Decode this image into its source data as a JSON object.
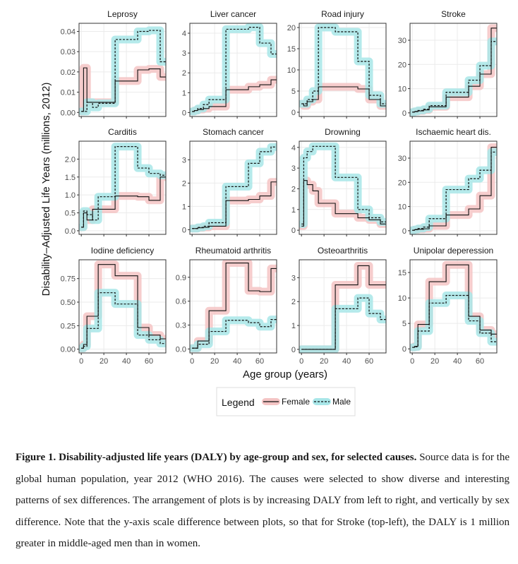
{
  "ylabel": "Disability–Adjusted Life Years (millions, 2012)",
  "xlabel": "Age group (years)",
  "legend": {
    "title": "Legend",
    "female": "Female",
    "male": "Male"
  },
  "colors": {
    "female_band": "#f4c4c4",
    "male_band": "#a8e6e8",
    "line": "#111111",
    "grid": "#ebebeb",
    "border": "#333333"
  },
  "caption": {
    "title": "Figure 1. Disability-adjusted life years (DALY) by age-group and sex, for selected causes.",
    "body": "Source data is for the global human population, year 2012 (WHO 2016). The causes were selected to show diverse and interesting patterns of sex differences. The arrangement of plots is by increasing DALY from left to right, and vertically by sex difference. Note that the y-axis scale difference between plots, so that for Stroke (top-left), the DALY is 1 million greater in middle-aged men than in women."
  },
  "chart_data": {
    "type": "line",
    "step": true,
    "xlabel": "Age group (years)",
    "ylabel": "Disability–Adjusted Life Years (millions, 2012)",
    "xlim": [
      -2,
      75
    ],
    "xticks": [
      0,
      20,
      40,
      60
    ],
    "x": [
      0,
      2,
      5,
      10,
      15,
      30,
      50,
      60,
      70,
      75
    ],
    "legend_position": "bottom-center",
    "grid": true,
    "panels": [
      {
        "title": "Leprosy",
        "ylim": [
          -0.002,
          0.044
        ],
        "yticks": [
          0,
          0.01,
          0.02,
          0.03,
          0.04
        ],
        "ytick_labels": [
          "0.00",
          "0.01",
          "0.02",
          "0.03",
          "0.04"
        ],
        "series": [
          {
            "name": "Female",
            "values": [
              0.0005,
              0.022,
              0.005,
              0.005,
              0.005,
              0.0155,
              0.021,
              0.0215,
              0.0175,
              0.0175
            ]
          },
          {
            "name": "Male",
            "values": [
              0.0005,
              0.0005,
              0.005,
              0.0025,
              0.0045,
              0.036,
              0.04,
              0.0405,
              0.025,
              0.025
            ]
          }
        ]
      },
      {
        "title": "Liver cancer",
        "ylim": [
          -0.2,
          4.5
        ],
        "yticks": [
          0,
          1,
          2,
          3,
          4
        ],
        "ytick_labels": [
          "0",
          "1",
          "2",
          "3",
          "4"
        ],
        "series": [
          {
            "name": "Female",
            "values": [
              0.05,
              0.1,
              0.15,
              0.2,
              0.3,
              1.15,
              1.3,
              1.4,
              1.65,
              1.65
            ]
          },
          {
            "name": "Male",
            "values": [
              0.05,
              0.1,
              0.2,
              0.4,
              0.65,
              4.2,
              4.3,
              3.5,
              2.95,
              2.95
            ]
          }
        ]
      },
      {
        "title": "Road injury",
        "ylim": [
          -1,
          21
        ],
        "yticks": [
          0,
          5,
          10,
          15,
          20
        ],
        "ytick_labels": [
          "0",
          "5",
          "10",
          "15",
          "20"
        ],
        "series": [
          {
            "name": "Female",
            "values": [
              2,
              1.5,
              2.5,
              3,
              6,
              6,
              5.5,
              3,
              1.5,
              1.5
            ]
          },
          {
            "name": "Male",
            "values": [
              2,
              2,
              3,
              5,
              20,
              19,
              12,
              4,
              2,
              2
            ]
          }
        ]
      },
      {
        "title": "Stroke",
        "ylim": [
          -1.5,
          37
        ],
        "yticks": [
          0,
          10,
          20,
          30
        ],
        "ytick_labels": [
          "0",
          "10",
          "20",
          "30"
        ],
        "series": [
          {
            "name": "Female",
            "values": [
              0.3,
              0.5,
              0.8,
              1.2,
              2.5,
              6.5,
              11,
              16,
              35,
              35
            ]
          },
          {
            "name": "Male",
            "values": [
              0.3,
              0.6,
              1,
              1.5,
              3,
              8.5,
              13.5,
              19.5,
              29.5,
              29.5
            ]
          }
        ]
      },
      {
        "title": "Carditis",
        "ylim": [
          -0.1,
          2.5
        ],
        "yticks": [
          0,
          0.5,
          1,
          1.5,
          2
        ],
        "ytick_labels": [
          "0.0",
          "0.5",
          "1.0",
          "1.5",
          "2.0"
        ],
        "series": [
          {
            "name": "Female",
            "values": [
              0.1,
              0.5,
              0.3,
              0.6,
              0.6,
              0.97,
              0.95,
              0.85,
              1.5,
              1.5
            ]
          },
          {
            "name": "Male",
            "values": [
              0.1,
              0.55,
              0.45,
              0.3,
              0.95,
              2.35,
              1.75,
              1.6,
              1.55,
              1.55
            ]
          }
        ]
      },
      {
        "title": "Stomach cancer",
        "ylim": [
          -0.2,
          3.8
        ],
        "yticks": [
          0,
          1,
          2,
          3
        ],
        "ytick_labels": [
          "0",
          "1",
          "2",
          "3"
        ],
        "series": [
          {
            "name": "Female",
            "values": [
              0.05,
              0.05,
              0.08,
              0.1,
              0.15,
              1.25,
              1.3,
              1.45,
              2.05,
              2.05
            ]
          },
          {
            "name": "Male",
            "values": [
              0.05,
              0.05,
              0.1,
              0.15,
              0.3,
              1.85,
              2.85,
              3.35,
              3.55,
              3.55
            ]
          }
        ]
      },
      {
        "title": "Drowning",
        "ylim": [
          -0.2,
          4.3
        ],
        "yticks": [
          0,
          1,
          2,
          3,
          4
        ],
        "ytick_labels": [
          "0",
          "1",
          "2",
          "3",
          "4"
        ],
        "series": [
          {
            "name": "Female",
            "values": [
              0.2,
              2.4,
              2.2,
              1.9,
              1.3,
              0.8,
              0.6,
              0.5,
              0.3,
              0.3
            ]
          },
          {
            "name": "Male",
            "values": [
              0.3,
              3.5,
              3.8,
              4.05,
              4.05,
              2.55,
              1.0,
              0.6,
              0.4,
              0.4
            ]
          }
        ]
      },
      {
        "title": "Ischaemic heart dis.",
        "ylim": [
          -1.5,
          37
        ],
        "yticks": [
          0,
          10,
          20,
          30
        ],
        "ytick_labels": [
          "0",
          "10",
          "20",
          "30"
        ],
        "series": [
          {
            "name": "Female",
            "values": [
              0.2,
              0.4,
              0.6,
              0.8,
              2,
              6.5,
              9,
              14.5,
              34.5,
              34.5
            ]
          },
          {
            "name": "Male",
            "values": [
              0.2,
              0.5,
              0.9,
              1.5,
              5,
              17,
              21.5,
              25,
              32.5,
              32.5
            ]
          }
        ]
      },
      {
        "title": "Iodine deficiency",
        "ylim": [
          -0.04,
          0.95
        ],
        "yticks": [
          0,
          0.25,
          0.5,
          0.75
        ],
        "ytick_labels": [
          "0.00",
          "0.25",
          "0.50",
          "0.75"
        ],
        "series": [
          {
            "name": "Female",
            "values": [
              0.01,
              0.05,
              0.35,
              0.35,
              0.9,
              0.78,
              0.23,
              0.15,
              0.11,
              0.11
            ]
          },
          {
            "name": "Male",
            "values": [
              0.01,
              0.03,
              0.22,
              0.22,
              0.6,
              0.48,
              0.15,
              0.1,
              0.06,
              0.06
            ]
          }
        ]
      },
      {
        "title": "Rheumatoid arthritis",
        "ylim": [
          -0.05,
          1.12
        ],
        "yticks": [
          0,
          0.3,
          0.6,
          0.9
        ],
        "ytick_labels": [
          "0.0",
          "0.3",
          "0.6",
          "0.9"
        ],
        "series": [
          {
            "name": "Female",
            "values": [
              0.01,
              0.01,
              0.1,
              0.1,
              0.48,
              1.08,
              0.73,
              0.72,
              1.01,
              1.01
            ]
          },
          {
            "name": "Male",
            "values": [
              0.01,
              0.01,
              0.06,
              0.06,
              0.22,
              0.36,
              0.33,
              0.28,
              0.37,
              0.37
            ]
          }
        ]
      },
      {
        "title": "Osteoarthritis",
        "ylim": [
          -0.15,
          3.75
        ],
        "yticks": [
          0,
          1,
          2,
          3
        ],
        "ytick_labels": [
          "0",
          "1",
          "2",
          "3"
        ],
        "series": [
          {
            "name": "Female",
            "values": [
              0,
              0,
              0,
              0,
              0,
              2.7,
              3.5,
              2.7,
              2.7,
              2.7
            ]
          },
          {
            "name": "Male",
            "values": [
              0,
              0,
              0,
              0,
              0,
              1.7,
              2.15,
              1.5,
              1.25,
              1.25
            ]
          }
        ]
      },
      {
        "title": "Unipolar deperession",
        "ylim": [
          -0.8,
          17.5
        ],
        "yticks": [
          0,
          5,
          10,
          15
        ],
        "ytick_labels": [
          "0",
          "5",
          "10",
          "15"
        ],
        "series": [
          {
            "name": "Female",
            "values": [
              0.3,
              0.5,
              4.8,
              4.8,
              13.2,
              16.5,
              6.4,
              3.7,
              2.9,
              2.9
            ]
          },
          {
            "name": "Male",
            "values": [
              0.3,
              0.4,
              3.5,
              3.5,
              9,
              10.5,
              5.5,
              3.1,
              1.4,
              1.4
            ]
          }
        ]
      }
    ]
  }
}
